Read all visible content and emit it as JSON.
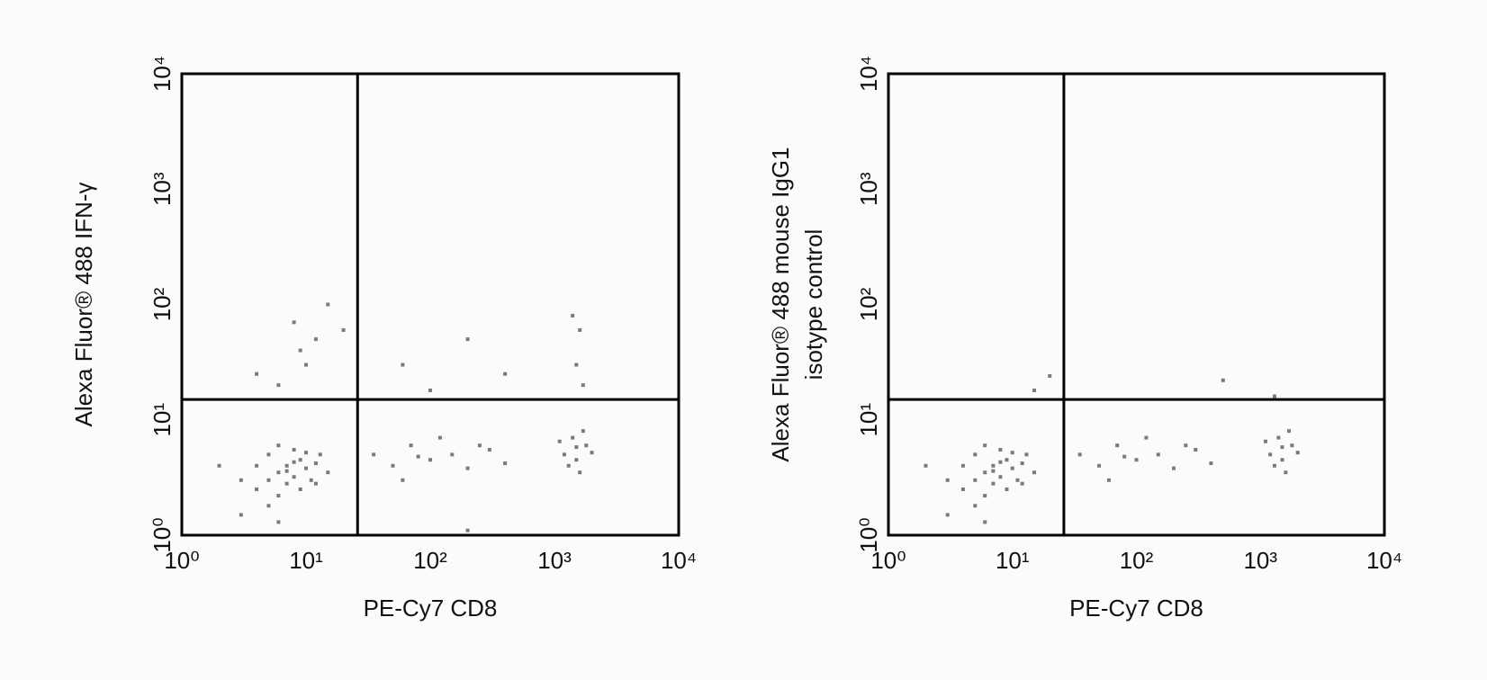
{
  "chart_data": [
    {
      "type": "scatter",
      "xlabel": "PE-Cy7 CD8",
      "ylabel": [
        "Alexa Fluor® 488 IFN-γ"
      ],
      "xscale": "log",
      "yscale": "log",
      "xlim": [
        1,
        10000
      ],
      "ylim": [
        1,
        10000
      ],
      "xticks": [
        {
          "value": 1,
          "label": "10⁰"
        },
        {
          "value": 10,
          "label": "10¹"
        },
        {
          "value": 100,
          "label": "10²"
        },
        {
          "value": 1000,
          "label": "10³"
        },
        {
          "value": 10000,
          "label": "10⁴"
        }
      ],
      "yticks": [
        {
          "value": 1,
          "label": "10⁰"
        },
        {
          "value": 10,
          "label": "10¹"
        },
        {
          "value": 100,
          "label": "10²"
        },
        {
          "value": 1000,
          "label": "10³"
        },
        {
          "value": 10000,
          "label": "10⁴"
        }
      ],
      "gate": {
        "x": 26,
        "y": 15
      },
      "color": "#7a7a7a",
      "x": [
        5,
        6,
        7,
        8,
        9,
        10,
        4,
        5,
        12,
        6,
        3,
        8,
        11,
        7,
        13,
        2,
        9,
        15,
        4,
        6,
        10,
        5,
        7,
        8,
        12,
        35,
        50,
        70,
        100,
        150,
        200,
        300,
        400,
        60,
        120,
        250,
        80,
        1200,
        1500,
        1800,
        1400,
        1600,
        2000,
        1300,
        1700,
        1500,
        1100,
        10,
        12,
        8,
        15,
        6,
        9,
        4,
        20,
        1500,
        1600,
        1400,
        1700,
        200,
        400,
        60,
        100,
        3,
        6,
        200
      ],
      "y": [
        3,
        3.5,
        4,
        3.2,
        4.5,
        3.8,
        2.5,
        5,
        4.2,
        2.2,
        3,
        5.5,
        3,
        2.8,
        5,
        4,
        2.5,
        3.5,
        4,
        6,
        5.2,
        1.8,
        3.6,
        4.3,
        2.8,
        5,
        4,
        6,
        4.5,
        5,
        3.8,
        5.5,
        4.2,
        3,
        7,
        6,
        4.8,
        5,
        4.5,
        6,
        7,
        3.5,
        5.2,
        4,
        8,
        5.8,
        6.5,
        30,
        50,
        70,
        100,
        20,
        40,
        25,
        60,
        30,
        60,
        80,
        20,
        50,
        25,
        30,
        18,
        1.5,
        1.3,
        1.1
      ]
    },
    {
      "type": "scatter",
      "xlabel": "PE-Cy7 CD8",
      "ylabel": [
        "Alexa Fluor® 488 mouse IgG1",
        "isotype control"
      ],
      "xscale": "log",
      "yscale": "log",
      "xlim": [
        1,
        10000
      ],
      "ylim": [
        1,
        10000
      ],
      "xticks": [
        {
          "value": 1,
          "label": "10⁰"
        },
        {
          "value": 10,
          "label": "10¹"
        },
        {
          "value": 100,
          "label": "10²"
        },
        {
          "value": 1000,
          "label": "10³"
        },
        {
          "value": 10000,
          "label": "10⁴"
        }
      ],
      "yticks": [
        {
          "value": 1,
          "label": "10⁰"
        },
        {
          "value": 10,
          "label": "10¹"
        },
        {
          "value": 100,
          "label": "10²"
        },
        {
          "value": 1000,
          "label": "10³"
        },
        {
          "value": 10000,
          "label": "10⁴"
        }
      ],
      "gate": {
        "x": 26,
        "y": 15
      },
      "color": "#7a7a7a",
      "x": [
        5,
        6,
        7,
        8,
        9,
        10,
        4,
        5,
        12,
        6,
        3,
        8,
        11,
        7,
        13,
        2,
        9,
        15,
        4,
        6,
        10,
        5,
        7,
        8,
        12,
        35,
        50,
        70,
        100,
        150,
        200,
        300,
        400,
        60,
        120,
        250,
        80,
        1200,
        1500,
        1800,
        1400,
        1600,
        2000,
        1300,
        1700,
        1500,
        1100,
        20,
        500,
        15,
        1300,
        3,
        6
      ],
      "y": [
        3,
        3.5,
        4,
        3.2,
        4.5,
        3.8,
        2.5,
        5,
        4.2,
        2.2,
        3,
        5.5,
        3,
        2.8,
        5,
        4,
        2.5,
        3.5,
        4,
        6,
        5.2,
        1.8,
        3.6,
        4.3,
        2.8,
        5,
        4,
        6,
        4.5,
        5,
        3.8,
        5.5,
        4.2,
        3,
        7,
        6,
        4.8,
        5,
        4.5,
        6,
        7,
        3.5,
        5.2,
        4,
        8,
        5.8,
        6.5,
        24,
        22,
        18,
        16,
        1.5,
        1.3
      ]
    }
  ]
}
